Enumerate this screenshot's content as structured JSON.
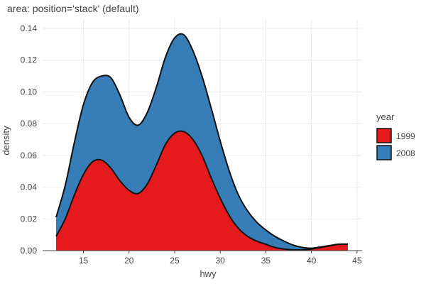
{
  "chart_data": {
    "type": "area",
    "stacking": "stack",
    "title": "area: position='stack' (default)",
    "xlabel": "hwy",
    "ylabel": "density",
    "xlim": [
      12,
      44
    ],
    "ylim": [
      0,
      0.14
    ],
    "x_ticks": [
      15,
      20,
      25,
      30,
      35,
      40,
      45
    ],
    "x_tick_labels": [
      "15",
      "20",
      "25",
      "30",
      "35",
      "40",
      "45"
    ],
    "y_ticks": [
      0,
      0.02,
      0.04,
      0.06,
      0.08,
      0.1,
      0.12,
      0.14
    ],
    "y_tick_labels": [
      "0.00",
      "0.02",
      "0.04",
      "0.06",
      "0.08",
      "0.10",
      "0.12",
      "0.14"
    ],
    "grid": true,
    "legend": {
      "title": "year",
      "position": "right"
    },
    "x": [
      12,
      13,
      14,
      15,
      16,
      17,
      18,
      19,
      20,
      21,
      22,
      23,
      24,
      25,
      26,
      27,
      28,
      29,
      30,
      31,
      32,
      33,
      34,
      35,
      36,
      37,
      38,
      39,
      40,
      41,
      42,
      43,
      44
    ],
    "series": [
      {
        "name": "1999",
        "color": "#e41a1c",
        "values": [
          0.009,
          0.02,
          0.035,
          0.048,
          0.056,
          0.057,
          0.052,
          0.044,
          0.038,
          0.036,
          0.042,
          0.054,
          0.067,
          0.074,
          0.075,
          0.07,
          0.06,
          0.046,
          0.033,
          0.022,
          0.014,
          0.009,
          0.006,
          0.004,
          0.002,
          0.001,
          0.0005,
          0.0005,
          0.001,
          0.002,
          0.003,
          0.004,
          0.004
        ]
      },
      {
        "name": "2008",
        "color": "#377eb8",
        "values": [
          0.012,
          0.021,
          0.033,
          0.044,
          0.05,
          0.053,
          0.057,
          0.054,
          0.046,
          0.043,
          0.045,
          0.049,
          0.055,
          0.06,
          0.061,
          0.056,
          0.05,
          0.044,
          0.036,
          0.028,
          0.021,
          0.016,
          0.012,
          0.009,
          0.007,
          0.005,
          0.003,
          0.0015,
          0.0005,
          0.0003,
          0.0002,
          0.0001,
          0.0001
        ]
      }
    ]
  }
}
